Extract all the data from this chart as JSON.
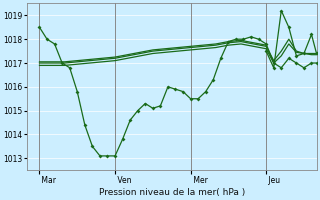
{
  "xlabel": "Pression niveau de la mer( hPa )",
  "bg_color": "#cceeff",
  "line_color": "#1a6b1a",
  "grid_color": "#ffffff",
  "ylim": [
    1012.5,
    1019.5
  ],
  "yticks": [
    1013,
    1014,
    1015,
    1016,
    1017,
    1018,
    1019
  ],
  "day_labels": [
    " Mar",
    " Ven",
    " Mer",
    " Jeu"
  ],
  "day_positions": [
    0.0,
    3.0,
    6.0,
    9.0
  ],
  "vlines_x": [
    0.0,
    3.0,
    6.0,
    9.0
  ],
  "xlim": [
    -0.5,
    11.0
  ],
  "series1_x": [
    0.0,
    0.3,
    0.6,
    0.9,
    1.2,
    1.5,
    1.8,
    2.1,
    2.4,
    2.7,
    3.0,
    3.3,
    3.6,
    3.9,
    4.2,
    4.5,
    4.8,
    5.1,
    5.4,
    5.7,
    6.0,
    6.3,
    6.6,
    6.9,
    7.2,
    7.5,
    7.8,
    8.1,
    8.4,
    8.7,
    9.0,
    9.3,
    9.6,
    9.9,
    10.2,
    10.5,
    10.8,
    11.0
  ],
  "series1_y": [
    1018.5,
    1018.0,
    1017.8,
    1017.0,
    1016.8,
    1015.8,
    1014.4,
    1013.5,
    1013.1,
    1013.1,
    1013.1,
    1013.8,
    1014.6,
    1015.0,
    1015.3,
    1015.1,
    1015.2,
    1016.0,
    1015.9,
    1015.8,
    1015.5,
    1015.5,
    1015.8,
    1016.3,
    1017.2,
    1017.9,
    1018.0,
    1018.0,
    1018.1,
    1018.0,
    1017.8,
    1017.0,
    1016.8,
    1017.2,
    1017.0,
    1016.8,
    1017.0,
    1017.0
  ],
  "series2_x": [
    0.0,
    0.5,
    1.0,
    1.5,
    2.0,
    2.5,
    3.0,
    3.5,
    4.0,
    4.5,
    5.0,
    5.5,
    6.0,
    6.5,
    7.0,
    7.5,
    8.0,
    8.5,
    9.0
  ],
  "series2_y": [
    1017.0,
    1017.0,
    1017.0,
    1017.05,
    1017.1,
    1017.15,
    1017.2,
    1017.3,
    1017.4,
    1017.5,
    1017.55,
    1017.6,
    1017.65,
    1017.7,
    1017.75,
    1017.85,
    1017.9,
    1017.8,
    1017.7
  ],
  "series3_x": [
    0.0,
    0.5,
    1.0,
    1.5,
    2.0,
    2.5,
    3.0,
    3.5,
    4.0,
    4.5,
    5.0,
    5.5,
    6.0,
    6.5,
    7.0,
    7.5,
    8.0,
    8.5,
    9.0
  ],
  "series3_y": [
    1017.05,
    1017.05,
    1017.05,
    1017.1,
    1017.15,
    1017.2,
    1017.25,
    1017.35,
    1017.45,
    1017.55,
    1017.6,
    1017.65,
    1017.7,
    1017.75,
    1017.8,
    1017.9,
    1017.95,
    1017.85,
    1017.75
  ],
  "series4_x": [
    0.0,
    0.5,
    1.0,
    1.5,
    2.0,
    2.5,
    3.0,
    3.5,
    4.0,
    4.5,
    5.0,
    5.5,
    6.0,
    6.5,
    7.0,
    7.5,
    8.0,
    8.5,
    9.0
  ],
  "series4_y": [
    1016.9,
    1016.9,
    1016.9,
    1016.95,
    1017.0,
    1017.05,
    1017.1,
    1017.2,
    1017.3,
    1017.4,
    1017.45,
    1017.5,
    1017.55,
    1017.6,
    1017.65,
    1017.75,
    1017.8,
    1017.7,
    1017.6
  ],
  "series5_x": [
    9.0,
    9.3,
    9.6,
    9.9,
    10.2,
    10.5,
    10.8,
    11.0
  ],
  "series5_y": [
    1017.5,
    1016.8,
    1019.2,
    1018.5,
    1017.3,
    1017.4,
    1018.2,
    1017.4
  ],
  "series6_x": [
    9.0,
    9.3,
    9.6,
    9.9,
    10.2,
    10.5,
    10.8,
    11.0
  ],
  "series6_y": [
    1017.7,
    1017.1,
    1017.5,
    1018.0,
    1017.5,
    1017.4,
    1017.4,
    1017.4
  ],
  "series7_x": [
    9.0,
    9.3,
    9.6,
    9.9,
    10.2,
    10.5,
    10.8,
    11.0
  ],
  "series7_y": [
    1017.6,
    1017.0,
    1017.3,
    1017.8,
    1017.45,
    1017.4,
    1017.35,
    1017.35
  ]
}
